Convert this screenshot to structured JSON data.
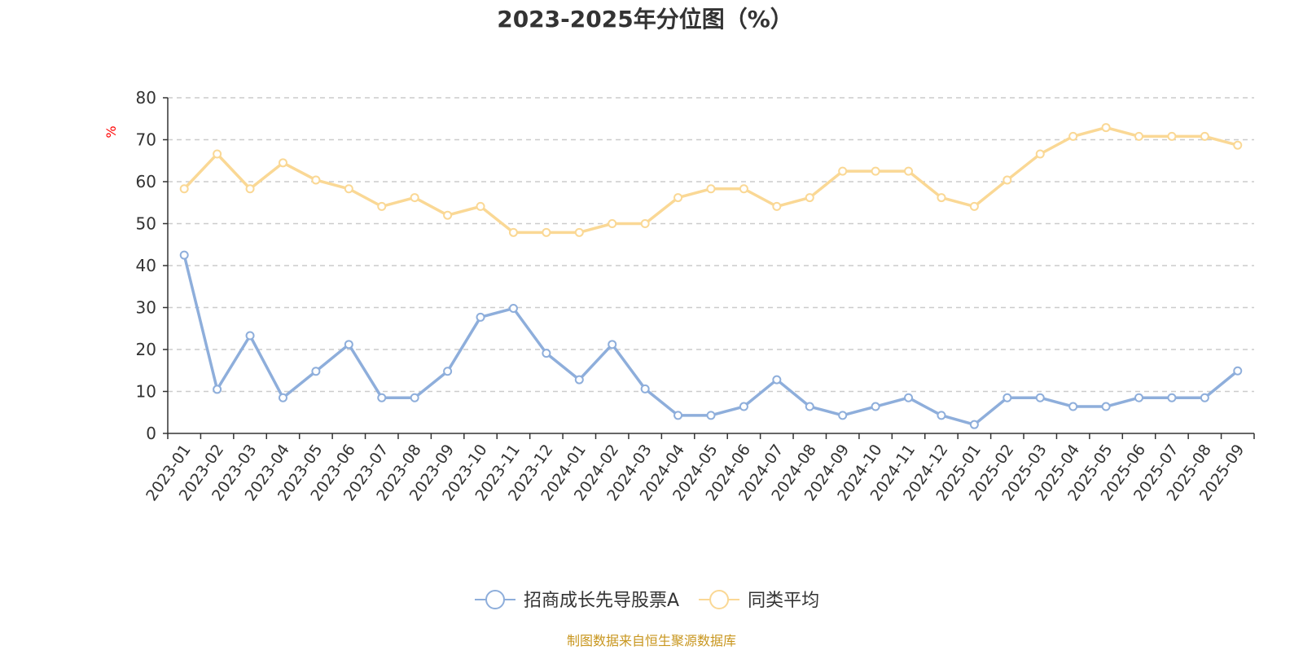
{
  "chart_data": {
    "type": "line",
    "title": "2023-2025年分位图（%）",
    "ylabel": "%",
    "xlabel": "",
    "ylim": [
      0,
      80
    ],
    "yticks": [
      0,
      10,
      20,
      30,
      40,
      50,
      60,
      70,
      80
    ],
    "grid": true,
    "legend_position": "bottom-center",
    "categories": [
      "2023-01",
      "2023-02",
      "2023-03",
      "2023-04",
      "2023-05",
      "2023-06",
      "2023-07",
      "2023-08",
      "2023-09",
      "2023-10",
      "2023-11",
      "2023-12",
      "2024-01",
      "2024-02",
      "2024-03",
      "2024-04",
      "2024-05",
      "2024-06",
      "2024-07",
      "2024-08",
      "2024-09",
      "2024-10",
      "2024-11",
      "2024-12",
      "2025-01",
      "2025-02",
      "2025-03",
      "2025-04",
      "2025-05",
      "2025-06",
      "2025-07",
      "2025-08",
      "2025-09"
    ],
    "series": [
      {
        "name": "招商成长先导股票A",
        "color": "#8eaedb",
        "values": [
          42.5,
          10.5,
          23.3,
          8.5,
          14.8,
          21.2,
          8.5,
          8.5,
          14.8,
          27.7,
          29.8,
          19.1,
          12.8,
          21.2,
          10.6,
          4.3,
          4.3,
          6.4,
          12.8,
          6.4,
          4.3,
          6.4,
          8.5,
          4.3,
          2.1,
          8.5,
          8.5,
          6.4,
          6.4,
          8.5,
          8.5,
          8.5,
          14.9
        ]
      },
      {
        "name": "同类平均",
        "color": "#fad895",
        "values": [
          58.3,
          66.6,
          58.3,
          64.5,
          60.4,
          58.3,
          54.1,
          56.2,
          52.0,
          54.1,
          47.9,
          47.9,
          47.9,
          50.0,
          50.0,
          56.2,
          58.3,
          58.3,
          54.1,
          56.2,
          62.5,
          62.5,
          62.5,
          56.2,
          54.1,
          60.4,
          66.6,
          70.8,
          72.9,
          70.8,
          70.8,
          70.8,
          68.7
        ]
      }
    ]
  },
  "unit_color": "#ff0000",
  "source": {
    "text": "制图数据来自恒生聚源数据库",
    "color": "#c8961e"
  }
}
